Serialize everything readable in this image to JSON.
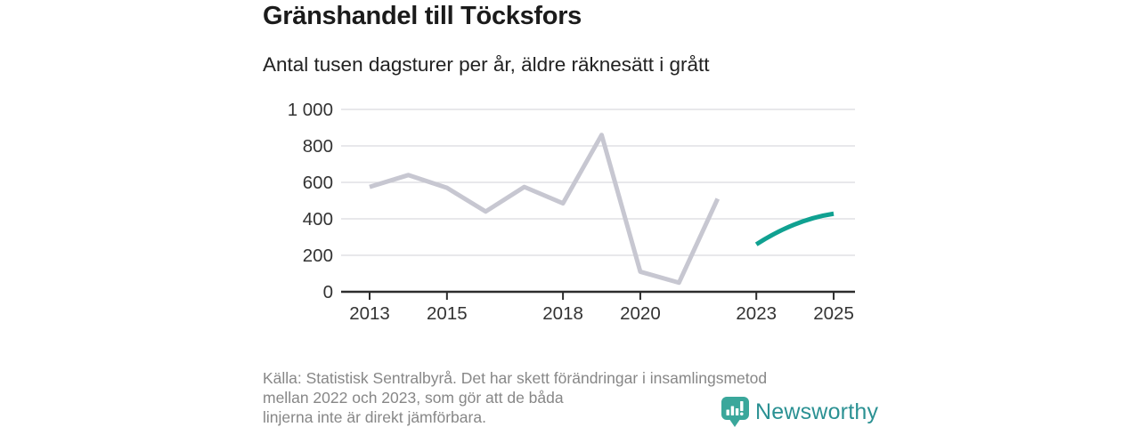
{
  "title": "Gränshandel till Töcksfors",
  "subtitle": "Antal tusen dagsturer per år, äldre räknesätt i grått",
  "chart_data": {
    "type": "line",
    "title": "Gränshandel till Töcksfors",
    "subtitle": "Antal tusen dagsturer per år, äldre räknesätt i grått",
    "xlabel": "",
    "ylabel": "",
    "ylim": [
      0,
      1000
    ],
    "xlim": [
      2012.3,
      2025.6
    ],
    "grid": "horizontal",
    "legend_position": "none",
    "y_ticks": [
      0,
      200,
      400,
      600,
      800,
      1000
    ],
    "y_tick_labels": [
      "0",
      "200",
      "400",
      "600",
      "800",
      "1 000"
    ],
    "x_ticks": [
      2013,
      2015,
      2018,
      2020,
      2023,
      2025
    ],
    "x_tick_labels": [
      "2013",
      "2015",
      "2018",
      "2020",
      "2023",
      "2025"
    ],
    "series": [
      {
        "name": "aldre-raknesatt-gra-linje",
        "color": "#c7c7d1",
        "smooth": false,
        "x": [
          2013,
          2014,
          2015,
          2016,
          2017,
          2018,
          2019,
          2020,
          2021,
          2022
        ],
        "values": [
          575,
          640,
          570,
          440,
          575,
          485,
          860,
          110,
          50,
          510
        ]
      },
      {
        "name": "nytt-raknesatt-teal-linje",
        "color": "#10a191",
        "smooth": true,
        "x": [
          2023,
          2024,
          2025
        ],
        "values": [
          260,
          370,
          428
        ]
      }
    ]
  },
  "colors": {
    "grid": "#dbdbdf",
    "axis": "#2d2d2d",
    "tick_label": "#333333",
    "footer_text": "#878787",
    "logo_icon": "#3aa79b",
    "logo_text": "#2b9193"
  },
  "footer": {
    "line1": "Källa: Statistisk Sentralbyrå. Det har skett förändringar i insamlingsmetod",
    "line2": "mellan 2022 och 2023, som gör att de båda",
    "line3": "linjerna inte är direkt jämförbara."
  },
  "logo": {
    "label": "Newsworthy",
    "icon": "newsworthy-bubble-barchart-icon"
  }
}
